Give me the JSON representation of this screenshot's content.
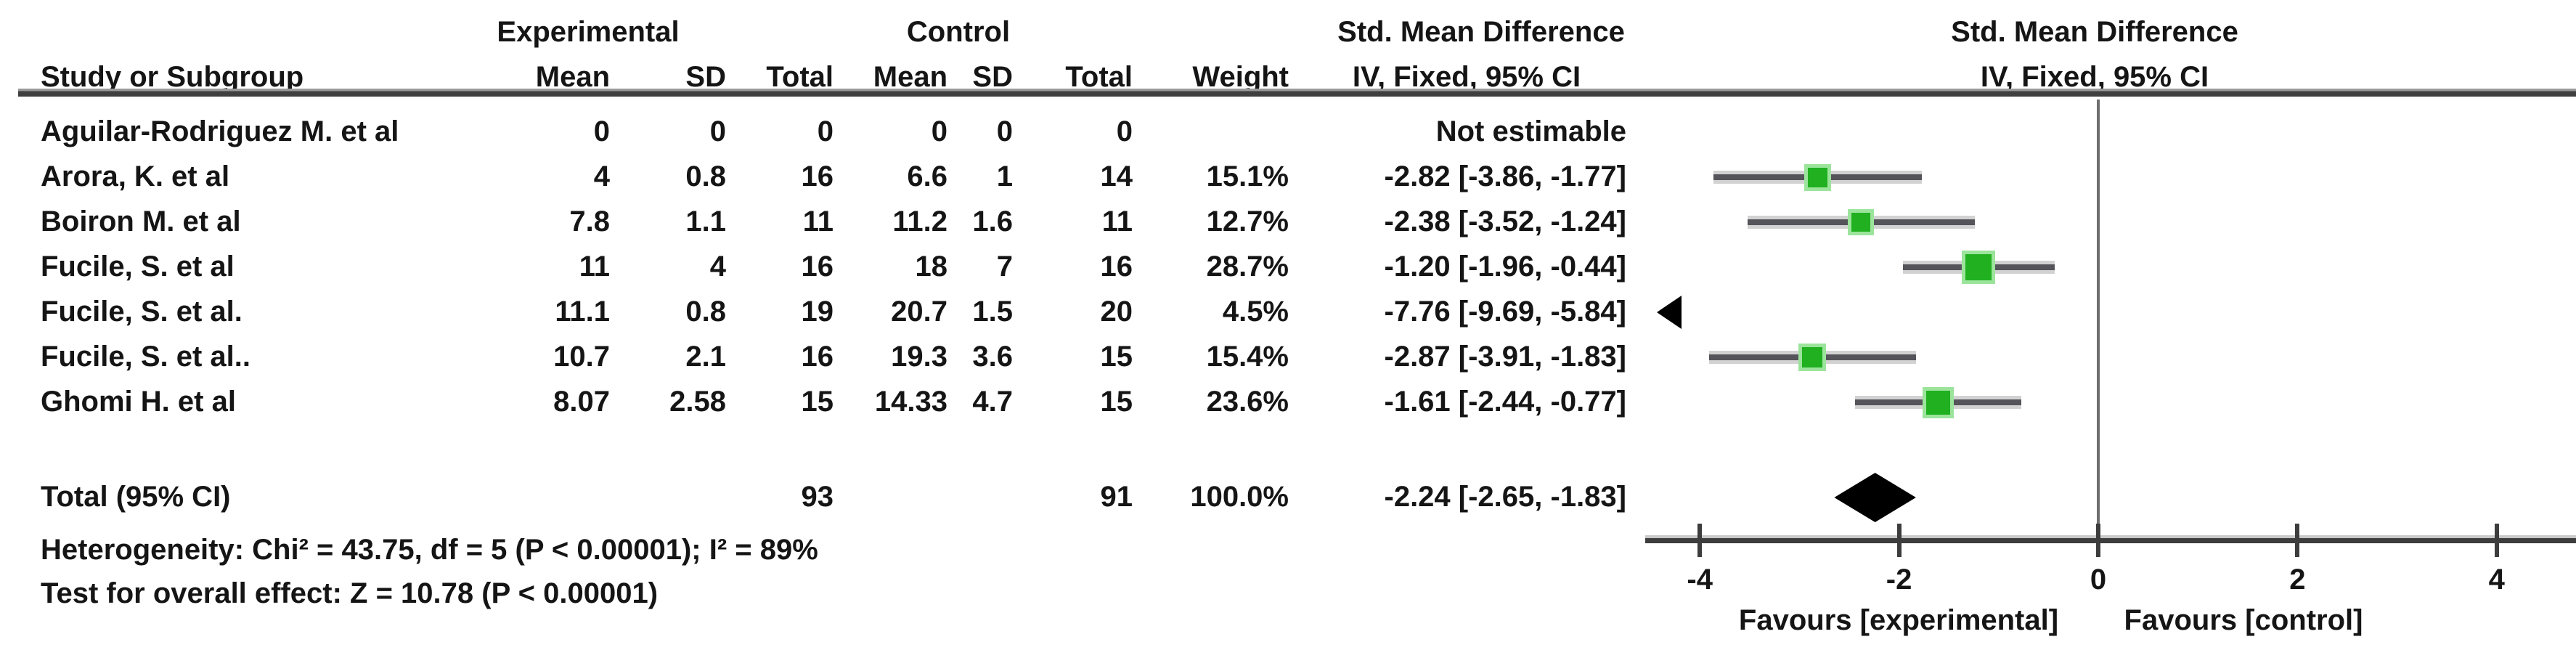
{
  "figure": {
    "group_headers": {
      "experimental": "Experimental",
      "control": "Control",
      "smd_left": "Std. Mean Difference",
      "smd_right": "Std. Mean Difference"
    },
    "column_headers": {
      "study": "Study or Subgroup",
      "exp_mean": "Mean",
      "exp_sd": "SD",
      "exp_total": "Total",
      "ctrl_mean": "Mean",
      "ctrl_sd": "SD",
      "ctrl_total": "Total",
      "weight": "Weight",
      "ci_left": "IV, Fixed, 95% CI",
      "ci_right": "IV, Fixed, 95% CI"
    },
    "footer": {
      "heterogeneity": "Heterogeneity: Chi² = 43.75, df = 5 (P < 0.00001); I² = 89%",
      "overall_effect": "Test for overall effect: Z = 10.78 (P < 0.00001)"
    },
    "axis": {
      "tick_labels": [
        "-4",
        "-2",
        "0",
        "2",
        "4"
      ],
      "favours_left": "Favours [experimental]",
      "favours_right": "Favours [control]"
    },
    "colors": {
      "square_green": "#20b020",
      "square_halo": "#9ce49c",
      "ci_line": "#54545a",
      "diamond": "#000000",
      "axis": "#3d3d3d",
      "text": "#151515",
      "rule": "#3f3f3f"
    }
  },
  "chart_data": {
    "type": "forest",
    "effect_measure": "Std. Mean Difference",
    "model": "IV, Fixed, 95% CI",
    "xlim": [
      -4,
      4
    ],
    "x_ticks": [
      -4,
      -2,
      0,
      2,
      4
    ],
    "studies": [
      {
        "name": "Aguilar-Rodriguez M. et al",
        "exp_mean": "0",
        "exp_sd": "0",
        "exp_total": "0",
        "ctrl_mean": "0",
        "ctrl_sd": "0",
        "ctrl_total": "0",
        "weight": "",
        "ci_text": "Not estimable",
        "estimate": null,
        "ci_low": null,
        "ci_high": null,
        "weight_pct": null
      },
      {
        "name": "Arora, K. et al",
        "exp_mean": "4",
        "exp_sd": "0.8",
        "exp_total": "16",
        "ctrl_mean": "6.6",
        "ctrl_sd": "1",
        "ctrl_total": "14",
        "weight": "15.1%",
        "ci_text": "-2.82 [-3.86, -1.77]",
        "estimate": -2.82,
        "ci_low": -3.86,
        "ci_high": -1.77,
        "weight_pct": 15.1
      },
      {
        "name": "Boiron M. et al",
        "exp_mean": "7.8",
        "exp_sd": "1.1",
        "exp_total": "11",
        "ctrl_mean": "11.2",
        "ctrl_sd": "1.6",
        "ctrl_total": "11",
        "weight": "12.7%",
        "ci_text": "-2.38 [-3.52, -1.24]",
        "estimate": -2.38,
        "ci_low": -3.52,
        "ci_high": -1.24,
        "weight_pct": 12.7
      },
      {
        "name": "Fucile, S. et al",
        "exp_mean": "11",
        "exp_sd": "4",
        "exp_total": "16",
        "ctrl_mean": "18",
        "ctrl_sd": "7",
        "ctrl_total": "16",
        "weight": "28.7%",
        "ci_text": "-1.20 [-1.96, -0.44]",
        "estimate": -1.2,
        "ci_low": -1.96,
        "ci_high": -0.44,
        "weight_pct": 28.7
      },
      {
        "name": "Fucile, S. et al.",
        "exp_mean": "11.1",
        "exp_sd": "0.8",
        "exp_total": "19",
        "ctrl_mean": "20.7",
        "ctrl_sd": "1.5",
        "ctrl_total": "20",
        "weight": "4.5%",
        "ci_text": "-7.76 [-9.69, -5.84]",
        "estimate": -7.76,
        "ci_low": -9.69,
        "ci_high": -5.84,
        "weight_pct": 4.5,
        "off_scale": "low"
      },
      {
        "name": "Fucile, S. et al..",
        "exp_mean": "10.7",
        "exp_sd": "2.1",
        "exp_total": "16",
        "ctrl_mean": "19.3",
        "ctrl_sd": "3.6",
        "ctrl_total": "15",
        "weight": "15.4%",
        "ci_text": "-2.87 [-3.91, -1.83]",
        "estimate": -2.87,
        "ci_low": -3.91,
        "ci_high": -1.83,
        "weight_pct": 15.4
      },
      {
        "name": "Ghomi H. et al",
        "exp_mean": "8.07",
        "exp_sd": "2.58",
        "exp_total": "15",
        "ctrl_mean": "14.33",
        "ctrl_sd": "4.7",
        "ctrl_total": "15",
        "weight": "23.6%",
        "ci_text": "-1.61 [-2.44, -0.77]",
        "estimate": -1.61,
        "ci_low": -2.44,
        "ci_high": -0.77,
        "weight_pct": 23.6
      }
    ],
    "total": {
      "label": "Total (95% CI)",
      "exp_total": "93",
      "ctrl_total": "91",
      "weight": "100.0%",
      "ci_text": "-2.24 [-2.65, -1.83]",
      "estimate": -2.24,
      "ci_low": -2.65,
      "ci_high": -1.83
    }
  }
}
